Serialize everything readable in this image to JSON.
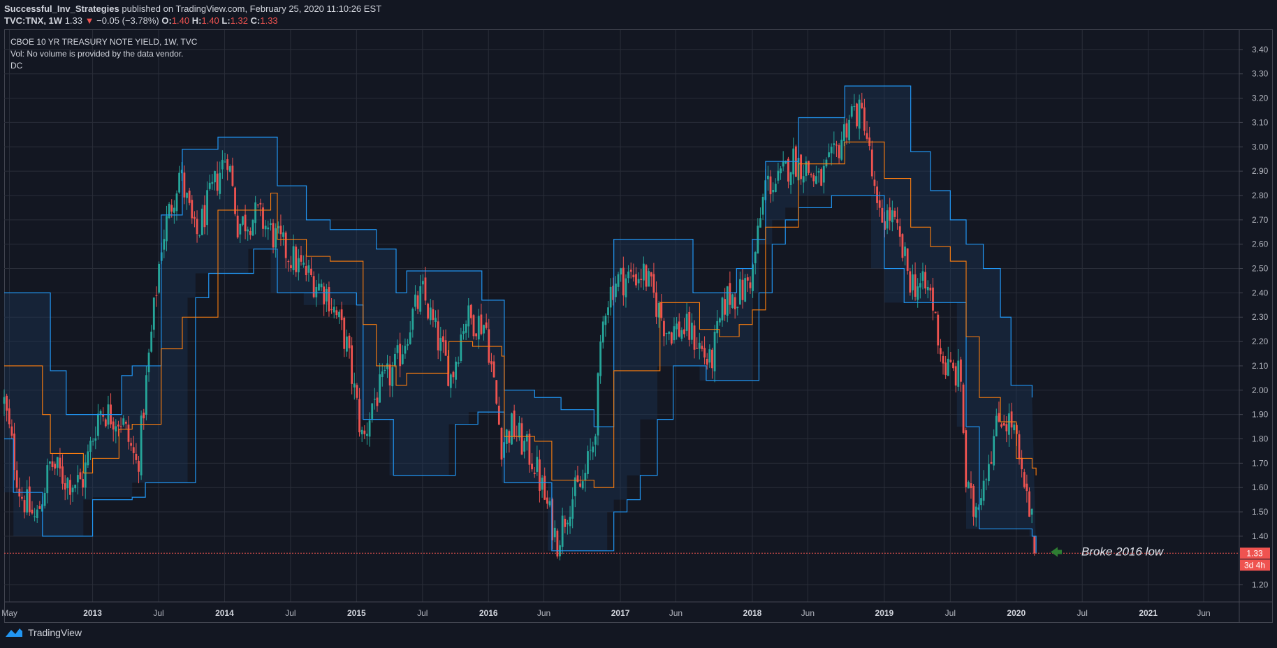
{
  "header": {
    "publisher": "Successful_Inv_Strategies",
    "published_text": " published on TradingView.com, February 25, 2020 11:10:26 EST",
    "symbol": "TVC:TNX, 1W",
    "last": "1.33",
    "arrow": "▼",
    "change": "−0.05 (−3.78%)",
    "o_label": "O:",
    "o": "1.40",
    "h_label": "H:",
    "h": "1.40",
    "l_label": "L:",
    "l": "1.32",
    "c_label": "C:",
    "c": "1.33"
  },
  "legend": {
    "title": "CBOE 10 YR TREASURY NOTE YIELD, 1W, TVC",
    "vol": "Vol: No volume is provided by the data vendor.",
    "indicator": "DC"
  },
  "annotation": {
    "text": "Broke 2016 low"
  },
  "price_label": {
    "value": "1.33",
    "countdown": "3d 4h"
  },
  "footer": {
    "brand": "TradingView"
  },
  "colors": {
    "background": "#131722",
    "grid": "#2a2e39",
    "up": "#26a69a",
    "down": "#ef5350",
    "dc_band": "#2196f3",
    "dc_mid": "#ff7f0e",
    "arrow": "#2e7d32"
  },
  "chart_data": {
    "type": "candlestick",
    "title": "CBOE 10 YR TREASURY NOTE YIELD, 1W, TVC",
    "ylim": [
      1.13,
      3.48
    ],
    "yticks": [
      "3.40",
      "3.30",
      "3.20",
      "3.10",
      "3.00",
      "2.90",
      "2.80",
      "2.70",
      "2.60",
      "2.50",
      "2.40",
      "2.30",
      "2.20",
      "2.10",
      "2.00",
      "1.90",
      "1.80",
      "1.70",
      "1.60",
      "1.50",
      "1.40",
      "1.20"
    ],
    "x_range": [
      2012.33,
      2021.69
    ],
    "xticks": [
      {
        "label": "May",
        "t": 2012.37,
        "bold": false
      },
      {
        "label": "2013",
        "t": 2013.0,
        "bold": true
      },
      {
        "label": "Jul",
        "t": 2013.5,
        "bold": false
      },
      {
        "label": "2014",
        "t": 2014.0,
        "bold": true
      },
      {
        "label": "Jul",
        "t": 2014.5,
        "bold": false
      },
      {
        "label": "2015",
        "t": 2015.0,
        "bold": true
      },
      {
        "label": "Jul",
        "t": 2015.5,
        "bold": false
      },
      {
        "label": "2016",
        "t": 2016.0,
        "bold": true
      },
      {
        "label": "Jun",
        "t": 2016.42,
        "bold": false
      },
      {
        "label": "2017",
        "t": 2017.0,
        "bold": true
      },
      {
        "label": "Jun",
        "t": 2017.42,
        "bold": false
      },
      {
        "label": "2018",
        "t": 2018.0,
        "bold": true
      },
      {
        "label": "Jun",
        "t": 2018.42,
        "bold": false
      },
      {
        "label": "2019",
        "t": 2019.0,
        "bold": true
      },
      {
        "label": "Jul",
        "t": 2019.5,
        "bold": false
      },
      {
        "label": "2020",
        "t": 2020.0,
        "bold": true
      },
      {
        "label": "Jul",
        "t": 2020.5,
        "bold": false
      },
      {
        "label": "2021",
        "t": 2021.0,
        "bold": true
      },
      {
        "label": "Jun",
        "t": 2021.42,
        "bold": false
      }
    ],
    "close_anchors": [
      [
        2012.33,
        1.95
      ],
      [
        2012.45,
        1.58
      ],
      [
        2012.57,
        1.46
      ],
      [
        2012.68,
        1.7
      ],
      [
        2012.8,
        1.63
      ],
      [
        2012.92,
        1.62
      ],
      [
        2013.05,
        1.92
      ],
      [
        2013.22,
        1.88
      ],
      [
        2013.34,
        1.68
      ],
      [
        2013.42,
        2.1
      ],
      [
        2013.52,
        2.6
      ],
      [
        2013.66,
        2.9
      ],
      [
        2013.78,
        2.62
      ],
      [
        2013.95,
        2.88
      ],
      [
        2014.02,
        2.98
      ],
      [
        2014.1,
        2.68
      ],
      [
        2014.25,
        2.72
      ],
      [
        2014.42,
        2.6
      ],
      [
        2014.58,
        2.5
      ],
      [
        2014.78,
        2.4
      ],
      [
        2014.92,
        2.2
      ],
      [
        2015.05,
        1.78
      ],
      [
        2015.12,
        1.95
      ],
      [
        2015.3,
        2.1
      ],
      [
        2015.42,
        2.3
      ],
      [
        2015.5,
        2.4
      ],
      [
        2015.62,
        2.2
      ],
      [
        2015.72,
        2.05
      ],
      [
        2015.82,
        2.3
      ],
      [
        2015.98,
        2.27
      ],
      [
        2016.1,
        1.78
      ],
      [
        2016.18,
        1.85
      ],
      [
        2016.35,
        1.7
      ],
      [
        2016.52,
        1.38
      ],
      [
        2016.62,
        1.55
      ],
      [
        2016.72,
        1.62
      ],
      [
        2016.8,
        1.8
      ],
      [
        2016.88,
        2.35
      ],
      [
        2016.96,
        2.45
      ],
      [
        2017.18,
        2.48
      ],
      [
        2017.35,
        2.25
      ],
      [
        2017.5,
        2.25
      ],
      [
        2017.58,
        2.2
      ],
      [
        2017.68,
        2.1
      ],
      [
        2017.8,
        2.38
      ],
      [
        2017.92,
        2.4
      ],
      [
        2018.0,
        2.48
      ],
      [
        2018.1,
        2.85
      ],
      [
        2018.2,
        2.85
      ],
      [
        2018.3,
        2.95
      ],
      [
        2018.4,
        2.92
      ],
      [
        2018.5,
        2.85
      ],
      [
        2018.62,
        2.95
      ],
      [
        2018.75,
        3.15
      ],
      [
        2018.85,
        3.12
      ],
      [
        2018.95,
        2.7
      ],
      [
        2019.05,
        2.72
      ],
      [
        2019.2,
        2.45
      ],
      [
        2019.35,
        2.4
      ],
      [
        2019.45,
        2.1
      ],
      [
        2019.58,
        2.05
      ],
      [
        2019.62,
        1.6
      ],
      [
        2019.68,
        1.5
      ],
      [
        2019.78,
        1.7
      ],
      [
        2019.88,
        1.9
      ],
      [
        2019.98,
        1.85
      ],
      [
        2020.05,
        1.6
      ],
      [
        2020.1,
        1.5
      ],
      [
        2020.13,
        1.42
      ],
      [
        2020.15,
        1.33
      ]
    ],
    "donchian": {
      "upper": [
        [
          2012.33,
          2.4
        ],
        [
          2012.62,
          2.4
        ],
        [
          2012.68,
          2.08
        ],
        [
          2012.8,
          1.9
        ],
        [
          2013.15,
          1.9
        ],
        [
          2013.22,
          2.06
        ],
        [
          2013.3,
          2.1
        ],
        [
          2013.45,
          2.1
        ],
        [
          2013.52,
          2.72
        ],
        [
          2013.68,
          2.99
        ],
        [
          2013.95,
          3.04
        ],
        [
          2014.35,
          3.04
        ],
        [
          2014.4,
          2.84
        ],
        [
          2014.58,
          2.84
        ],
        [
          2014.62,
          2.7
        ],
        [
          2014.8,
          2.66
        ],
        [
          2015.05,
          2.66
        ],
        [
          2015.15,
          2.58
        ],
        [
          2015.3,
          2.4
        ],
        [
          2015.38,
          2.49
        ],
        [
          2015.88,
          2.49
        ],
        [
          2015.95,
          2.37
        ],
        [
          2016.05,
          2.37
        ],
        [
          2016.12,
          2.0
        ],
        [
          2016.35,
          1.97
        ],
        [
          2016.55,
          1.92
        ],
        [
          2016.8,
          1.85
        ],
        [
          2016.95,
          2.62
        ],
        [
          2017.45,
          2.62
        ],
        [
          2017.55,
          2.4
        ],
        [
          2017.75,
          2.4
        ],
        [
          2017.88,
          2.5
        ],
        [
          2018.0,
          2.62
        ],
        [
          2018.1,
          2.94
        ],
        [
          2018.35,
          3.12
        ],
        [
          2018.7,
          3.25
        ],
        [
          2019.0,
          3.25
        ],
        [
          2019.2,
          2.98
        ],
        [
          2019.35,
          2.82
        ],
        [
          2019.5,
          2.7
        ],
        [
          2019.62,
          2.6
        ],
        [
          2019.75,
          2.5
        ],
        [
          2019.88,
          2.3
        ],
        [
          2019.96,
          2.02
        ],
        [
          2020.12,
          1.97
        ]
      ],
      "lower": [
        [
          2012.33,
          1.8
        ],
        [
          2012.4,
          1.58
        ],
        [
          2012.62,
          1.4
        ],
        [
          2012.93,
          1.4
        ],
        [
          2013.0,
          1.55
        ],
        [
          2013.3,
          1.56
        ],
        [
          2013.4,
          1.62
        ],
        [
          2013.72,
          1.62
        ],
        [
          2013.78,
          2.38
        ],
        [
          2013.88,
          2.48
        ],
        [
          2014.18,
          2.48
        ],
        [
          2014.22,
          2.58
        ],
        [
          2014.35,
          2.58
        ],
        [
          2014.4,
          2.4
        ],
        [
          2014.6,
          2.4
        ],
        [
          2015.0,
          2.35
        ],
        [
          2015.05,
          1.88
        ],
        [
          2015.25,
          1.88
        ],
        [
          2015.28,
          1.65
        ],
        [
          2015.7,
          1.65
        ],
        [
          2015.75,
          1.86
        ],
        [
          2015.85,
          1.86
        ],
        [
          2015.92,
          1.91
        ],
        [
          2016.1,
          1.91
        ],
        [
          2016.12,
          1.62
        ],
        [
          2016.45,
          1.62
        ],
        [
          2016.48,
          1.34
        ],
        [
          2016.9,
          1.34
        ],
        [
          2016.95,
          1.5
        ],
        [
          2017.05,
          1.55
        ],
        [
          2017.15,
          1.65
        ],
        [
          2017.28,
          1.88
        ],
        [
          2017.4,
          2.1
        ],
        [
          2017.6,
          2.1
        ],
        [
          2017.65,
          2.04
        ],
        [
          2018.0,
          2.04
        ],
        [
          2018.05,
          2.4
        ],
        [
          2018.15,
          2.6
        ],
        [
          2018.25,
          2.7
        ],
        [
          2018.35,
          2.75
        ],
        [
          2018.6,
          2.8
        ],
        [
          2018.9,
          2.8
        ],
        [
          2019.0,
          2.5
        ],
        [
          2019.15,
          2.36
        ],
        [
          2019.55,
          2.36
        ],
        [
          2019.62,
          1.85
        ],
        [
          2019.72,
          1.43
        ],
        [
          2020.1,
          1.43
        ],
        [
          2020.12,
          1.4
        ],
        [
          2020.15,
          1.33
        ]
      ],
      "basis": [
        [
          2012.33,
          2.1
        ],
        [
          2012.62,
          1.9
        ],
        [
          2012.68,
          1.74
        ],
        [
          2012.93,
          1.66
        ],
        [
          2013.0,
          1.72
        ],
        [
          2013.2,
          1.84
        ],
        [
          2013.3,
          1.86
        ],
        [
          2013.45,
          1.86
        ],
        [
          2013.52,
          2.17
        ],
        [
          2013.68,
          2.3
        ],
        [
          2013.95,
          2.74
        ],
        [
          2014.35,
          2.81
        ],
        [
          2014.4,
          2.62
        ],
        [
          2014.62,
          2.55
        ],
        [
          2014.8,
          2.53
        ],
        [
          2015.05,
          2.27
        ],
        [
          2015.15,
          2.1
        ],
        [
          2015.3,
          2.02
        ],
        [
          2015.38,
          2.07
        ],
        [
          2015.7,
          2.2
        ],
        [
          2015.88,
          2.18
        ],
        [
          2016.1,
          2.14
        ],
        [
          2016.12,
          1.81
        ],
        [
          2016.35,
          1.79
        ],
        [
          2016.48,
          1.63
        ],
        [
          2016.8,
          1.6
        ],
        [
          2016.95,
          2.08
        ],
        [
          2017.3,
          2.36
        ],
        [
          2017.45,
          2.36
        ],
        [
          2017.6,
          2.25
        ],
        [
          2017.75,
          2.22
        ],
        [
          2017.9,
          2.27
        ],
        [
          2018.0,
          2.33
        ],
        [
          2018.1,
          2.67
        ],
        [
          2018.35,
          2.93
        ],
        [
          2018.7,
          3.02
        ],
        [
          2019.0,
          2.87
        ],
        [
          2019.2,
          2.67
        ],
        [
          2019.35,
          2.59
        ],
        [
          2019.5,
          2.53
        ],
        [
          2019.62,
          2.22
        ],
        [
          2019.72,
          1.97
        ],
        [
          2019.88,
          1.87
        ],
        [
          2020.0,
          1.72
        ],
        [
          2020.12,
          1.68
        ],
        [
          2020.15,
          1.65
        ]
      ]
    }
  }
}
